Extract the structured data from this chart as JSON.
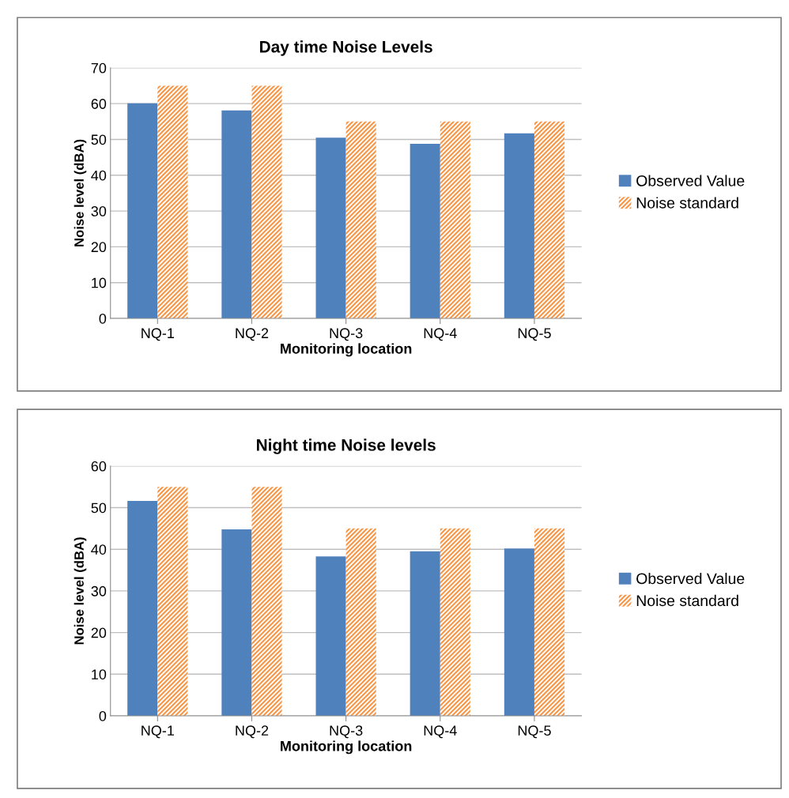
{
  "chart_data": [
    {
      "type": "bar",
      "title": "Day time Noise Levels",
      "xlabel": "Monitoring location",
      "ylabel": "Noise level (dBA)",
      "categories": [
        "NQ-1",
        "NQ-2",
        "NQ-3",
        "NQ-4",
        "NQ-5"
      ],
      "series": [
        {
          "name": "Observed Value",
          "color": "#4f81bd",
          "values": [
            60.1,
            58.1,
            50.5,
            48.8,
            51.7
          ]
        },
        {
          "name": "Noise standard",
          "color": "#f79646",
          "values": [
            65,
            65,
            55,
            55,
            55
          ]
        }
      ],
      "ylim": [
        0,
        70
      ],
      "yticks": [
        0,
        10,
        20,
        30,
        40,
        50,
        60,
        70
      ],
      "grid": "y",
      "legend": "right"
    },
    {
      "type": "bar",
      "title": "Night time Noise levels",
      "xlabel": "Monitoring location",
      "ylabel": "Noise level (dBA)",
      "categories": [
        "NQ-1",
        "NQ-2",
        "NQ-3",
        "NQ-4",
        "NQ-5"
      ],
      "series": [
        {
          "name": "Observed Value",
          "color": "#4f81bd",
          "values": [
            51.6,
            44.8,
            38.3,
            39.5,
            40.2
          ]
        },
        {
          "name": "Noise standard",
          "color": "#f79646",
          "values": [
            55,
            55,
            45,
            45,
            45
          ]
        }
      ],
      "ylim": [
        0,
        60
      ],
      "yticks": [
        0,
        10,
        20,
        30,
        40,
        50,
        60
      ],
      "grid": "y",
      "legend": "right"
    }
  ]
}
